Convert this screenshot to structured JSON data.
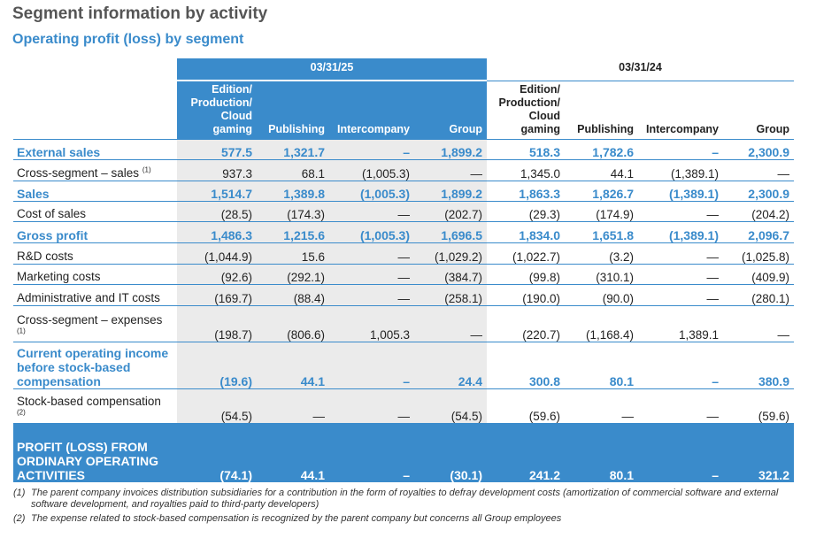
{
  "title": "Segment information by activity",
  "subtitle": "Operating profit (loss) by segment",
  "periods": [
    "03/31/25",
    "03/31/24"
  ],
  "columns": [
    "Edition/ Production/ Cloud gaming",
    "Publishing",
    "Intercompany",
    "Group"
  ],
  "rows": [
    {
      "label": "External sales",
      "note": "",
      "highlight": true,
      "v25": [
        "577.5",
        "1,321.7",
        "–",
        "1,899.2"
      ],
      "v24": [
        "518.3",
        "1,782.6",
        "–",
        "2,300.9"
      ]
    },
    {
      "label": "Cross-segment – sales",
      "note": "(1)",
      "highlight": false,
      "v25": [
        "937.3",
        "68.1",
        "(1,005.3)",
        "—"
      ],
      "v24": [
        "1,345.0",
        "44.1",
        "(1,389.1)",
        "—"
      ]
    },
    {
      "label": "Sales",
      "note": "",
      "highlight": true,
      "v25": [
        "1,514.7",
        "1,389.8",
        "(1,005.3)",
        "1,899.2"
      ],
      "v24": [
        "1,863.3",
        "1,826.7",
        "(1,389.1)",
        "2,300.9"
      ]
    },
    {
      "label": "Cost of sales",
      "note": "",
      "highlight": false,
      "v25": [
        "(28.5)",
        "(174.3)",
        "—",
        "(202.7)"
      ],
      "v24": [
        "(29.3)",
        "(174.9)",
        "—",
        "(204.2)"
      ]
    },
    {
      "label": "Gross profit",
      "note": "",
      "highlight": true,
      "v25": [
        "1,486.3",
        "1,215.6",
        "(1,005.3)",
        "1,696.5"
      ],
      "v24": [
        "1,834.0",
        "1,651.8",
        "(1,389.1)",
        "2,096.7"
      ]
    },
    {
      "label": "R&D costs",
      "note": "",
      "highlight": false,
      "v25": [
        "(1,044.9)",
        "15.6",
        "—",
        "(1,029.2)"
      ],
      "v24": [
        "(1,022.7)",
        "(3.2)",
        "—",
        "(1,025.8)"
      ]
    },
    {
      "label": "Marketing costs",
      "note": "",
      "highlight": false,
      "v25": [
        "(92.6)",
        "(292.1)",
        "—",
        "(384.7)"
      ],
      "v24": [
        "(99.8)",
        "(310.1)",
        "—",
        "(409.9)"
      ]
    },
    {
      "label": "Administrative and IT costs",
      "note": "",
      "highlight": false,
      "v25": [
        "(169.7)",
        "(88.4)",
        "—",
        "(258.1)"
      ],
      "v24": [
        "(190.0)",
        "(90.0)",
        "—",
        "(280.1)"
      ]
    },
    {
      "label": "Cross-segment – expenses",
      "note": "(1)",
      "highlight": false,
      "v25": [
        "(198.7)",
        "(806.6)",
        "1,005.3",
        "—"
      ],
      "v24": [
        "(220.7)",
        "(1,168.4)",
        "1,389.1",
        "—"
      ]
    },
    {
      "label": "Current operating income before stock-based compensation",
      "note": "",
      "highlight": true,
      "v25": [
        "(19.6)",
        "44.1",
        "–",
        "24.4"
      ],
      "v24": [
        "300.8",
        "80.1",
        "–",
        "380.9"
      ]
    },
    {
      "label": "Stock-based compensation",
      "note": "(2)",
      "highlight": false,
      "v25": [
        "(54.5)",
        "—",
        "—",
        "(54.5)"
      ],
      "v24": [
        "(59.6)",
        "—",
        "—",
        "(59.6)"
      ]
    },
    {
      "label": "PROFIT (LOSS) FROM ORDINARY OPERATING ACTIVITIES",
      "note": "",
      "highlight": "final",
      "v25": [
        "(74.1)",
        "44.1",
        "–",
        "(30.1)"
      ],
      "v24": [
        "241.2",
        "80.1",
        "–",
        "321.2"
      ]
    }
  ],
  "footnotes": [
    {
      "num": "(1)",
      "text": "The parent company invoices distribution subsidiaries for a contribution in the form of royalties to defray development costs (amortization of commercial software and external software development, and royalties paid to third-party developers)"
    },
    {
      "num": "(2)",
      "text": "The expense related to stock-based compensation is recognized by the parent company but concerns all Group employees"
    }
  ]
}
